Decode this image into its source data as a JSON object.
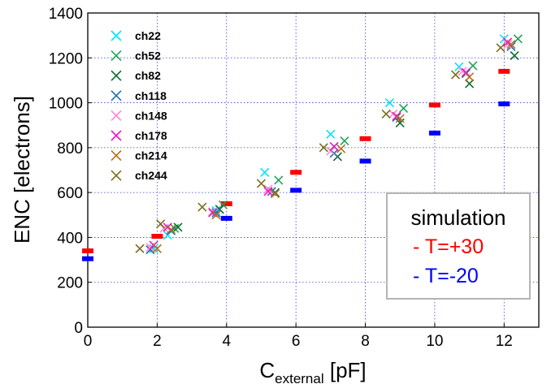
{
  "chart_data": {
    "type": "scatter",
    "xlabel_main": "C",
    "xlabel_sub": "external",
    "xlabel_unit": " [pF]",
    "ylabel": "ENC [electrons]",
    "xlim": [
      0,
      13
    ],
    "ylim": [
      0,
      1400
    ],
    "x_ticks": [
      0,
      2,
      4,
      6,
      8,
      10,
      12
    ],
    "y_ticks": [
      0,
      200,
      400,
      600,
      800,
      1000,
      1200,
      1400
    ],
    "grid": true,
    "legend_position": "top-left",
    "series": [
      {
        "name": "ch22",
        "color": "#00e5ff",
        "marker": "x",
        "points": [
          [
            1.9,
            350
          ],
          [
            2.3,
            410
          ],
          [
            3.7,
            520
          ],
          [
            5.1,
            690
          ],
          [
            7.0,
            860
          ],
          [
            8.7,
            1000
          ],
          [
            10.7,
            1160
          ],
          [
            12.0,
            1285
          ]
        ]
      },
      {
        "name": "ch52",
        "color": "#1fa35a",
        "marker": "x",
        "points": [
          [
            2.5,
            440
          ],
          [
            3.9,
            545
          ],
          [
            5.5,
            655
          ],
          [
            7.4,
            830
          ],
          [
            9.1,
            975
          ],
          [
            11.1,
            1165
          ],
          [
            12.4,
            1285
          ]
        ]
      },
      {
        "name": "ch82",
        "color": "#0b6b2e",
        "marker": "x",
        "points": [
          [
            2.6,
            445
          ],
          [
            3.8,
            525
          ],
          [
            5.4,
            600
          ],
          [
            7.2,
            760
          ],
          [
            9.0,
            910
          ],
          [
            11.0,
            1085
          ],
          [
            12.3,
            1210
          ]
        ]
      },
      {
        "name": "ch118",
        "color": "#1c6fb0",
        "marker": "x",
        "points": [
          [
            1.8,
            345
          ],
          [
            2.4,
            430
          ],
          [
            3.7,
            510
          ],
          [
            5.3,
            605
          ],
          [
            7.1,
            775
          ],
          [
            8.9,
            935
          ],
          [
            10.9,
            1130
          ],
          [
            12.2,
            1250
          ]
        ]
      },
      {
        "name": "ch148",
        "color": "#ff88d8",
        "marker": "x",
        "points": [
          [
            1.8,
            355
          ],
          [
            2.2,
            440
          ],
          [
            3.6,
            515
          ],
          [
            5.2,
            615
          ],
          [
            7.0,
            785
          ],
          [
            8.8,
            950
          ],
          [
            10.8,
            1140
          ],
          [
            12.1,
            1260
          ]
        ]
      },
      {
        "name": "ch178",
        "color": "#ea18c0",
        "marker": "x",
        "points": [
          [
            1.9,
            365
          ],
          [
            2.3,
            445
          ],
          [
            3.6,
            510
          ],
          [
            5.2,
            605
          ],
          [
            7.1,
            805
          ],
          [
            8.9,
            940
          ],
          [
            10.9,
            1135
          ],
          [
            12.1,
            1270
          ]
        ]
      },
      {
        "name": "ch214",
        "color": "#b5701a",
        "marker": "x",
        "points": [
          [
            2.0,
            350
          ],
          [
            2.4,
            435
          ],
          [
            3.7,
            500
          ],
          [
            5.4,
            595
          ],
          [
            7.3,
            795
          ],
          [
            9.0,
            930
          ],
          [
            11.0,
            1115
          ],
          [
            12.2,
            1260
          ]
        ]
      },
      {
        "name": "ch244",
        "color": "#7a6e1e",
        "marker": "x",
        "points": [
          [
            1.5,
            350
          ],
          [
            2.1,
            460
          ],
          [
            3.3,
            535
          ],
          [
            5.0,
            640
          ],
          [
            6.8,
            800
          ],
          [
            8.6,
            950
          ],
          [
            10.6,
            1125
          ],
          [
            11.9,
            1245
          ]
        ]
      }
    ],
    "simulation": {
      "title": "simulation",
      "entries": [
        {
          "label": "- T=+30",
          "color": "#ff0000",
          "points": [
            [
              0,
              340
            ],
            [
              2,
              405
            ],
            [
              4,
              550
            ],
            [
              6,
              690
            ],
            [
              8,
              840
            ],
            [
              10,
              990
            ],
            [
              12,
              1140
            ]
          ]
        },
        {
          "label": "- T=-20",
          "color": "#0000ff",
          "points": [
            [
              0,
              305
            ],
            [
              4,
              485
            ],
            [
              6,
              610
            ],
            [
              8,
              740
            ],
            [
              10,
              865
            ],
            [
              12,
              995
            ]
          ]
        }
      ]
    }
  }
}
